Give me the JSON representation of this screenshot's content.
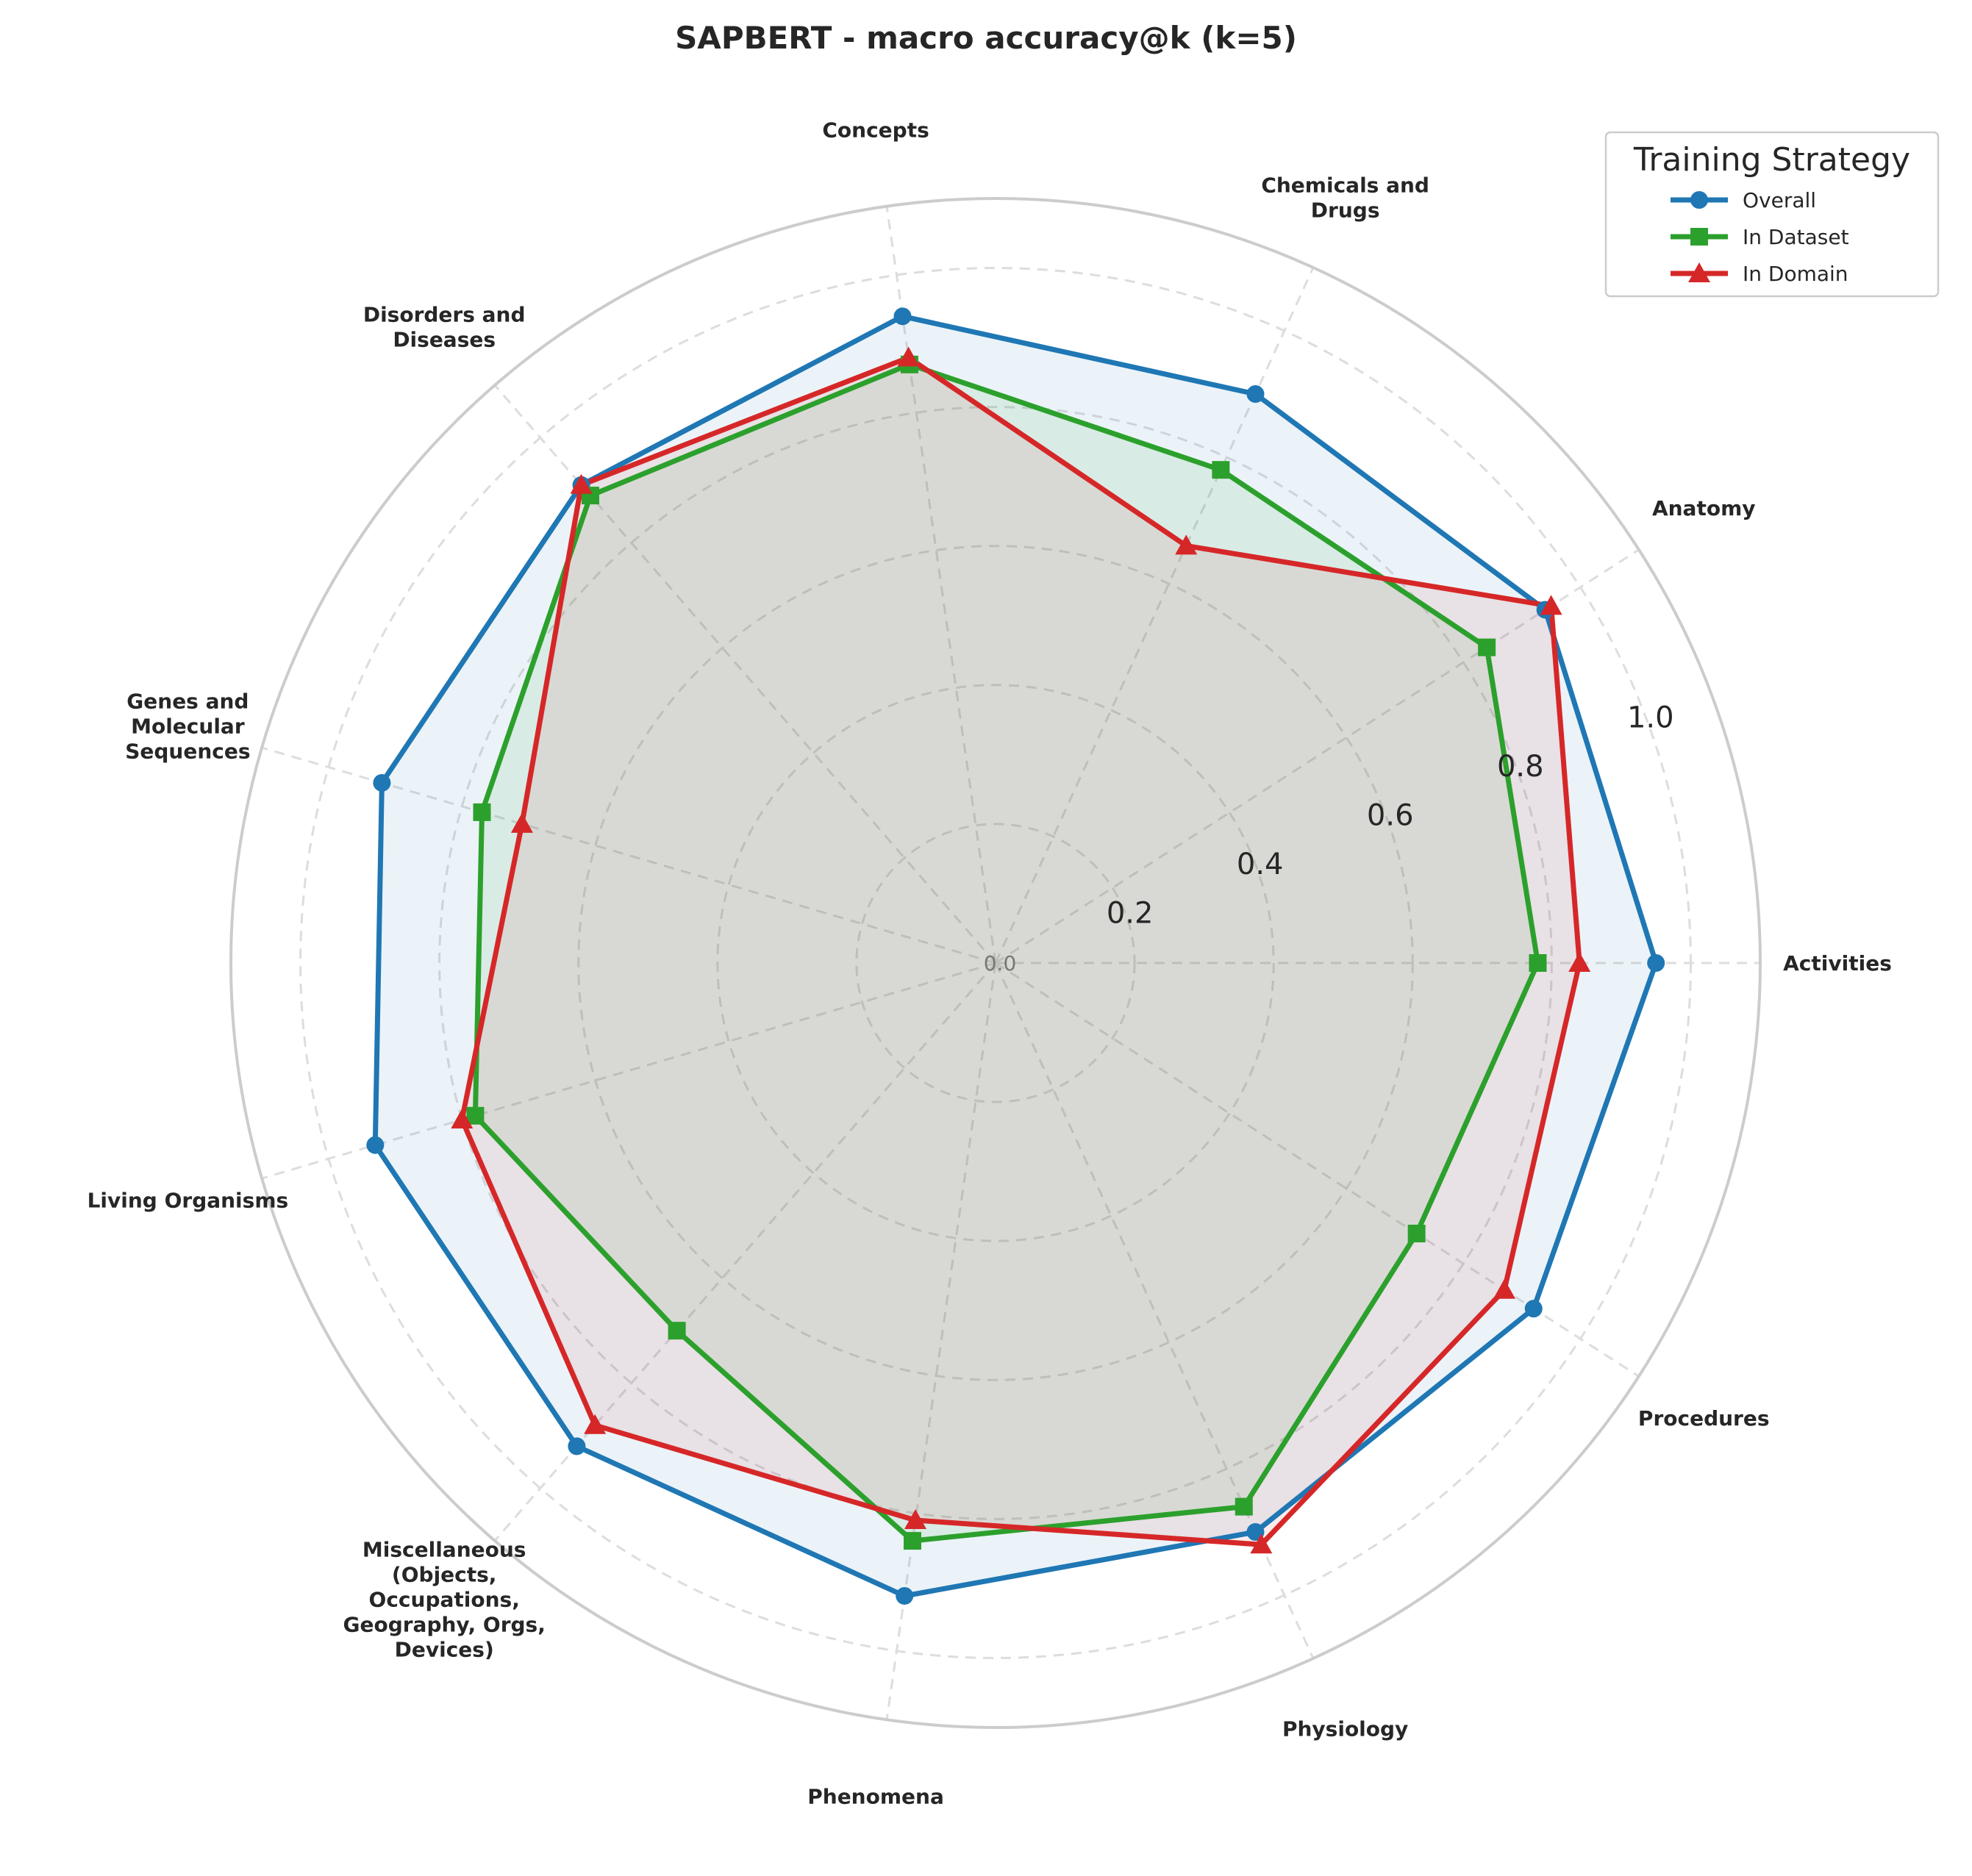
{
  "chart_data": {
    "type": "radar",
    "title": "SAPBERT - macro accuracy@k (k=5)",
    "categories": [
      "Activities",
      "Anatomy",
      "Chemicals and\nDrugs",
      "Concepts",
      "Disorders and\nDiseases",
      "Genes and\nMolecular\nSequences",
      "Living Organisms",
      "Miscellaneous\n(Objects,\nOccupations,\nGeography, Orgs,\nDevices)",
      "Phenomena",
      "Physiology",
      "Procedures"
    ],
    "series": [
      {
        "name": "Overall",
        "color": "#1f77b4",
        "marker": "circle",
        "fill": "#dbe8f6",
        "values": [
          0.95,
          0.94,
          0.9,
          0.94,
          0.91,
          0.92,
          0.93,
          0.92,
          0.92,
          0.9,
          0.92
        ]
      },
      {
        "name": "In Dataset",
        "color": "#2ca02c",
        "marker": "square",
        "fill": "#d4ecd8",
        "values": [
          0.78,
          0.84,
          0.78,
          0.87,
          0.89,
          0.77,
          0.78,
          0.7,
          0.84,
          0.86,
          0.72
        ]
      },
      {
        "name": "In Domain",
        "color": "#d62728",
        "marker": "triangle",
        "fill": "#eed2d6",
        "values": [
          0.84,
          0.95,
          0.66,
          0.88,
          0.91,
          0.71,
          0.8,
          0.88,
          0.81,
          0.92,
          0.87
        ]
      }
    ],
    "rticks": [
      "0.0",
      "0.2",
      "0.4",
      "0.6",
      "0.8",
      "1.0"
    ],
    "rlim": [
      0,
      1.1
    ],
    "grid": true,
    "legend": {
      "title": "Training Strategy",
      "placement": "top-right"
    }
  }
}
